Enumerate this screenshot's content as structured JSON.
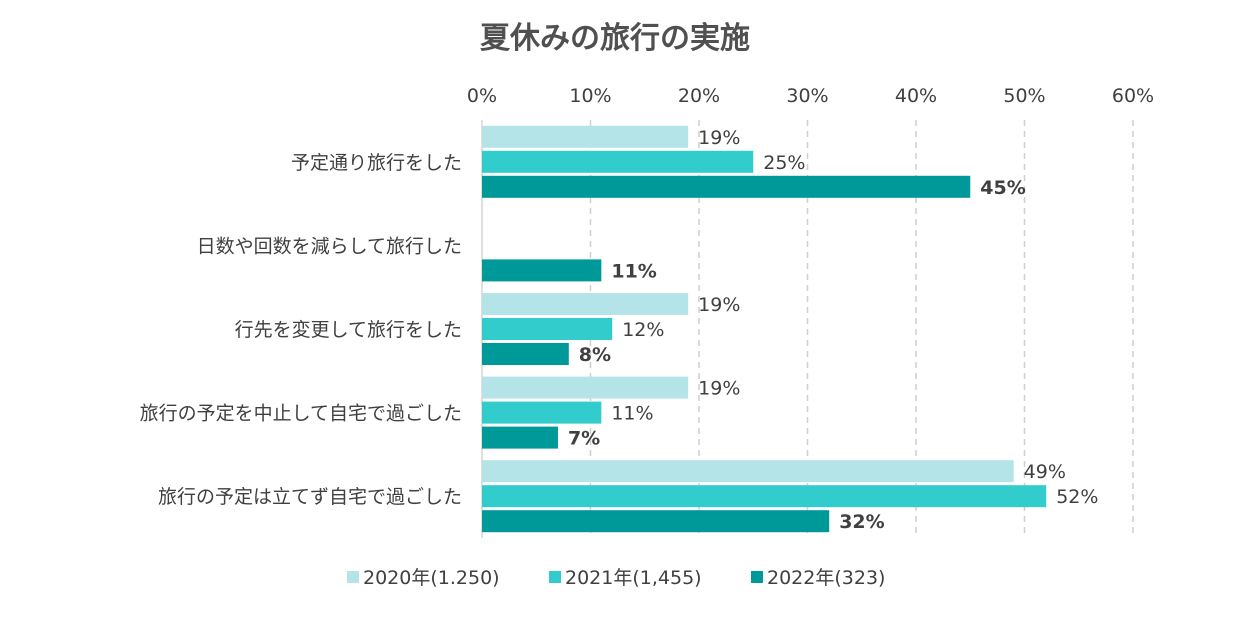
{
  "chart_data": {
    "type": "bar",
    "orientation": "horizontal",
    "title": "夏休みの旅行の実施",
    "categories": [
      "予定通り旅行をした",
      "日数や回数を減らして旅行した",
      "行先を変更して旅行をした",
      "旅行の予定を中止して自宅で過ごした",
      "旅行の予定は立てず自宅で過ごした"
    ],
    "series": [
      {
        "name": "2020年(1.250)",
        "color": "#b4e4e8",
        "values": [
          19,
          null,
          19,
          19,
          49
        ],
        "labels": [
          "19%",
          "",
          "19%",
          "19%",
          "49%"
        ]
      },
      {
        "name": "2021年(1,455)",
        "color": "#33cccc",
        "values": [
          25,
          null,
          12,
          11,
          52
        ],
        "labels": [
          "25%",
          "",
          "12%",
          "11%",
          "52%"
        ]
      },
      {
        "name": "2022年(323)",
        "color": "#009999",
        "values": [
          45,
          11,
          8,
          7,
          32
        ],
        "labels": [
          "45%",
          "11%",
          "8%",
          "7%",
          "32%"
        ]
      }
    ],
    "x_ticks": [
      "0%",
      "10%",
      "20%",
      "30%",
      "40%",
      "50%",
      "60%"
    ],
    "xlim": [
      0,
      60
    ],
    "grid": true,
    "legend_position": "bottom"
  }
}
